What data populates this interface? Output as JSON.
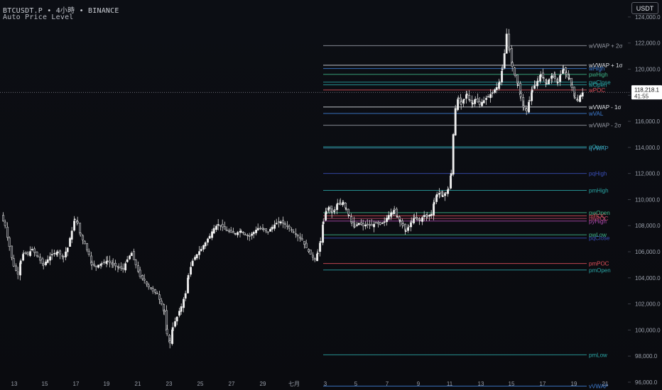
{
  "header": {
    "symbol": "BTCUSDT.P",
    "interval": "4小時",
    "exchange": "BINANCE",
    "sep": "•",
    "indicator": "Auto Price Level"
  },
  "currency_button": "USDT",
  "colors": {
    "bg": "#0b0d12",
    "candle_up": "#f2f2f2",
    "candle_down": "#2a2c33",
    "wick": "#d9d9d9",
    "axis_text": "#9aa0ab",
    "price_tag_bg": "#ffffff"
  },
  "chart_data": {
    "type": "candlestick",
    "title": "",
    "ylim": [
      95400,
      125300
    ],
    "y_ticks": [
      96000,
      98000,
      100000,
      102000,
      104000,
      106000,
      108000,
      110000,
      112000,
      114000,
      116000,
      118000,
      120000,
      122000,
      124000
    ],
    "y_tick_labels": [
      "96,000.0",
      "98,000.0",
      "100,000.0",
      "102,000.0",
      "104,000.0",
      "106,000.0",
      "108,000.0",
      "110,000.0",
      "112,000.0",
      "114,000.0",
      "116,000.0",
      "118,000.0",
      "120,000.0",
      "122,000.0",
      "124,000.0"
    ],
    "x_labels": [
      "13",
      "15",
      "17",
      "19",
      "21",
      "23",
      "25",
      "27",
      "29",
      "七月",
      "3",
      "5",
      "7",
      "9",
      "11",
      "13",
      "15",
      "17",
      "19",
      "21"
    ],
    "last_price": 118218.1,
    "last_price_label": "118,218.1",
    "countdown": "41:55",
    "levels": [
      {
        "name": "wVWAP + 2σ",
        "price": 121800,
        "color": "#9a9ea8"
      },
      {
        "name": "wVWAP + 1σ",
        "price": 120300,
        "color": "#e0e3e8"
      },
      {
        "name": "wHigh",
        "price": 120050,
        "color": "#3f7fd6"
      },
      {
        "name": "pwHigh",
        "price": 119600,
        "color": "#3fb98a"
      },
      {
        "name": "pwClose",
        "price": 119000,
        "color": "#2aa6a6"
      },
      {
        "name": "wOpen",
        "price": 118800,
        "color": "#2aa6a6"
      },
      {
        "name": "wPOC",
        "price": 118400,
        "color": "#e0505a"
      },
      {
        "name": "wVWAP - 1σ",
        "price": 117100,
        "color": "#e0e3e8"
      },
      {
        "name": "wVAL",
        "price": 116600,
        "color": "#3f7fd6"
      },
      {
        "name": "wVWAP - 2σ",
        "price": 115700,
        "color": "#9a9ea8"
      },
      {
        "name": "qOpen",
        "price": 114050,
        "color": "#2aa6a6"
      },
      {
        "name": "qVWAP",
        "price": 113950,
        "color": "#3a8fb0"
      },
      {
        "name": "pqHigh",
        "price": 112000,
        "color": "#3a4fb8"
      },
      {
        "name": "pmHigh",
        "price": 110700,
        "color": "#2aa6a6"
      },
      {
        "name": "pwOpen",
        "price": 109000,
        "color": "#3fb98a"
      },
      {
        "name": "mPOC",
        "price": 108750,
        "color": "#e0505a"
      },
      {
        "name": "pwPOC",
        "price": 108550,
        "color": "#c24a6a"
      },
      {
        "name": "pyHigh",
        "price": 108350,
        "color": "#b04ab0"
      },
      {
        "name": "pwLow",
        "price": 107300,
        "color": "#3fb98a"
      },
      {
        "name": "pqClose",
        "price": 107050,
        "color": "#3a4fb8"
      },
      {
        "name": "pmPOC",
        "price": 105100,
        "color": "#e0505a"
      },
      {
        "name": "pmOpen",
        "price": 104600,
        "color": "#2aa6a6"
      },
      {
        "name": "pmLow",
        "price": 98100,
        "color": "#2aa6a6"
      },
      {
        "name": "vVWAP",
        "price": 95700,
        "color": "#3f7fd6"
      }
    ],
    "close_path": [
      [
        0,
        108800
      ],
      [
        6,
        108000
      ],
      [
        12,
        106400
      ],
      [
        18,
        104900
      ],
      [
        24,
        104300
      ],
      [
        28,
        105300
      ],
      [
        32,
        105900
      ],
      [
        38,
        105800
      ],
      [
        44,
        106200
      ],
      [
        52,
        105600
      ],
      [
        60,
        105000
      ],
      [
        66,
        105400
      ],
      [
        72,
        105800
      ],
      [
        80,
        106000
      ],
      [
        88,
        105600
      ],
      [
        94,
        106300
      ],
      [
        100,
        107600
      ],
      [
        104,
        108500
      ],
      [
        108,
        108200
      ],
      [
        112,
        107300
      ],
      [
        118,
        106600
      ],
      [
        124,
        105800
      ],
      [
        128,
        105000
      ],
      [
        134,
        104900
      ],
      [
        142,
        105100
      ],
      [
        150,
        105300
      ],
      [
        158,
        105000
      ],
      [
        166,
        104800
      ],
      [
        172,
        104700
      ],
      [
        178,
        105400
      ],
      [
        184,
        105900
      ],
      [
        190,
        105000
      ],
      [
        196,
        104100
      ],
      [
        202,
        103800
      ],
      [
        208,
        103300
      ],
      [
        214,
        103000
      ],
      [
        220,
        102800
      ],
      [
        226,
        102000
      ],
      [
        230,
        101400
      ],
      [
        234,
        99700
      ],
      [
        238,
        99000
      ],
      [
        242,
        100200
      ],
      [
        248,
        101000
      ],
      [
        254,
        101800
      ],
      [
        260,
        102800
      ],
      [
        264,
        104200
      ],
      [
        270,
        105300
      ],
      [
        276,
        105800
      ],
      [
        282,
        106200
      ],
      [
        288,
        106700
      ],
      [
        294,
        107200
      ],
      [
        300,
        107800
      ],
      [
        306,
        108100
      ],
      [
        312,
        107900
      ],
      [
        318,
        107600
      ],
      [
        324,
        107500
      ],
      [
        330,
        107400
      ],
      [
        338,
        107600
      ],
      [
        344,
        107300
      ],
      [
        350,
        107200
      ],
      [
        356,
        107500
      ],
      [
        362,
        107800
      ],
      [
        370,
        107700
      ],
      [
        376,
        107500
      ],
      [
        382,
        107900
      ],
      [
        388,
        108200
      ],
      [
        394,
        108300
      ],
      [
        400,
        108100
      ],
      [
        406,
        107800
      ],
      [
        412,
        107500
      ],
      [
        418,
        107200
      ],
      [
        424,
        106900
      ],
      [
        430,
        106300
      ],
      [
        436,
        105800
      ],
      [
        442,
        105400
      ],
      [
        446,
        105900
      ],
      [
        450,
        106800
      ],
      [
        454,
        108300
      ],
      [
        458,
        109100
      ],
      [
        462,
        109400
      ],
      [
        466,
        109000
      ],
      [
        470,
        109200
      ],
      [
        474,
        109700
      ],
      [
        478,
        109600
      ],
      [
        482,
        109800
      ],
      [
        486,
        109300
      ],
      [
        490,
        108800
      ],
      [
        494,
        108200
      ],
      [
        498,
        107900
      ],
      [
        504,
        108200
      ],
      [
        510,
        108000
      ],
      [
        516,
        108100
      ],
      [
        522,
        108000
      ],
      [
        528,
        108200
      ],
      [
        534,
        108100
      ],
      [
        540,
        108300
      ],
      [
        546,
        108800
      ],
      [
        550,
        109000
      ],
      [
        554,
        109200
      ],
      [
        558,
        108700
      ],
      [
        562,
        108400
      ],
      [
        566,
        108000
      ],
      [
        570,
        107600
      ],
      [
        574,
        107900
      ],
      [
        578,
        108300
      ],
      [
        582,
        108600
      ],
      [
        586,
        108500
      ],
      [
        590,
        108400
      ],
      [
        596,
        108800
      ],
      [
        600,
        108700
      ],
      [
        606,
        108900
      ],
      [
        610,
        109800
      ],
      [
        614,
        110400
      ],
      [
        618,
        110500
      ],
      [
        622,
        110300
      ],
      [
        626,
        110500
      ],
      [
        630,
        110800
      ],
      [
        634,
        112000
      ],
      [
        637,
        115000
      ],
      [
        640,
        117000
      ],
      [
        644,
        117800
      ],
      [
        648,
        117300
      ],
      [
        652,
        117700
      ],
      [
        656,
        118100
      ],
      [
        660,
        117600
      ],
      [
        664,
        117400
      ],
      [
        668,
        117700
      ],
      [
        674,
        117300
      ],
      [
        680,
        117600
      ],
      [
        686,
        117900
      ],
      [
        692,
        118200
      ],
      [
        698,
        118600
      ],
      [
        702,
        119000
      ],
      [
        706,
        120000
      ],
      [
        709,
        121200
      ],
      [
        712,
        122700
      ],
      [
        716,
        121500
      ],
      [
        720,
        120200
      ],
      [
        724,
        119500
      ],
      [
        728,
        118800
      ],
      [
        732,
        117900
      ],
      [
        736,
        117100
      ],
      [
        740,
        116800
      ],
      [
        744,
        117600
      ],
      [
        748,
        118400
      ],
      [
        752,
        118800
      ],
      [
        756,
        119100
      ],
      [
        760,
        119600
      ],
      [
        764,
        119300
      ],
      [
        768,
        118900
      ],
      [
        772,
        119200
      ],
      [
        776,
        119500
      ],
      [
        780,
        119300
      ],
      [
        784,
        119000
      ],
      [
        788,
        119600
      ],
      [
        792,
        120000
      ],
      [
        796,
        119600
      ],
      [
        800,
        119300
      ],
      [
        804,
        118600
      ],
      [
        808,
        117800
      ],
      [
        812,
        117600
      ],
      [
        816,
        118000
      ],
      [
        819,
        118200
      ]
    ]
  }
}
